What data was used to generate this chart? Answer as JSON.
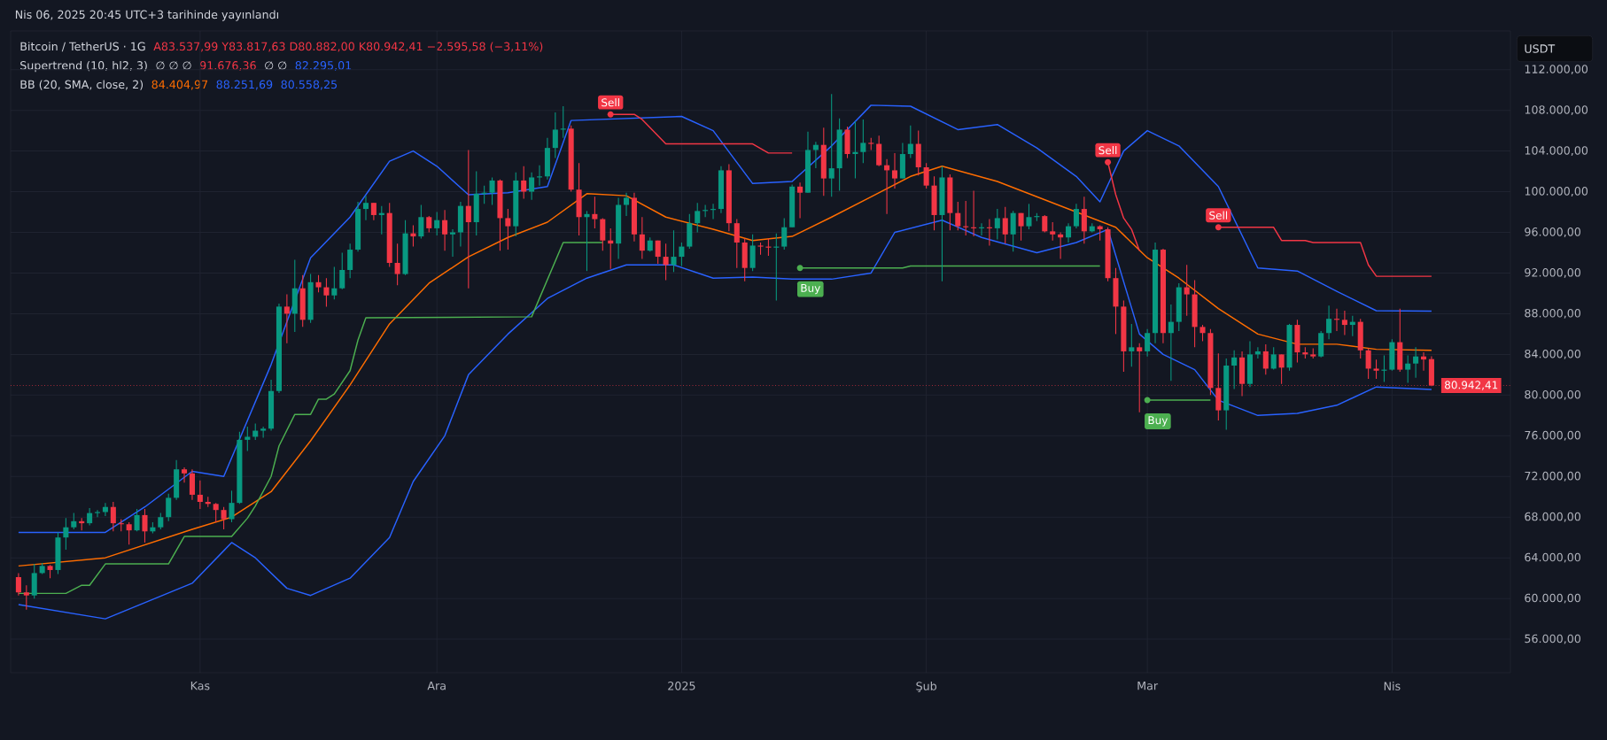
{
  "chart_data": {
    "type": "candlestick",
    "title": "Bitcoin / TetherUS · 1G",
    "subtitle": "Nis 06, 2025 20:45 UTC+3 tarihinde yayınlandı",
    "ylabel": "USDT",
    "x": [
      "2024-10-09",
      "2024-10-10",
      "2024-10-11",
      "2024-10-12",
      "2024-10-13",
      "2024-10-14",
      "2024-10-15",
      "2024-10-16",
      "2024-10-17",
      "2024-10-18",
      "2024-10-19",
      "2024-10-20",
      "2024-10-21",
      "2024-10-22",
      "2024-10-23",
      "2024-10-24",
      "2024-10-25",
      "2024-10-26",
      "2024-10-27",
      "2024-10-28",
      "2024-10-29",
      "2024-10-30",
      "2024-10-31",
      "2024-11-01",
      "2024-11-02",
      "2024-11-03",
      "2024-11-04",
      "2024-11-05",
      "2024-11-06",
      "2024-11-07",
      "2024-11-08",
      "2024-11-09",
      "2024-11-10",
      "2024-11-11",
      "2024-11-12",
      "2024-11-13",
      "2024-11-14",
      "2024-11-15",
      "2024-11-16",
      "2024-11-17",
      "2024-11-18",
      "2024-11-19",
      "2024-11-20",
      "2024-11-21",
      "2024-11-22",
      "2024-11-23",
      "2024-11-24",
      "2024-11-25",
      "2024-11-26",
      "2024-11-27",
      "2024-11-28",
      "2024-11-29",
      "2024-11-30",
      "2024-12-01",
      "2024-12-02",
      "2024-12-03",
      "2024-12-04",
      "2024-12-05",
      "2024-12-06",
      "2024-12-07",
      "2024-12-08",
      "2024-12-09",
      "2024-12-10",
      "2024-12-11",
      "2024-12-12",
      "2024-12-13",
      "2024-12-14",
      "2024-12-15",
      "2024-12-16",
      "2024-12-17",
      "2024-12-18",
      "2024-12-19",
      "2024-12-20",
      "2024-12-21",
      "2024-12-22",
      "2024-12-23",
      "2024-12-24",
      "2024-12-25",
      "2024-12-26",
      "2024-12-27",
      "2024-12-28",
      "2024-12-29",
      "2024-12-30",
      "2024-12-31",
      "2025-01-01",
      "2025-01-02",
      "2025-01-03",
      "2025-01-04",
      "2025-01-05",
      "2025-01-06",
      "2025-01-07",
      "2025-01-08",
      "2025-01-09",
      "2025-01-10",
      "2025-01-11",
      "2025-01-12",
      "2025-01-13",
      "2025-01-14",
      "2025-01-15",
      "2025-01-16",
      "2025-01-17",
      "2025-01-18",
      "2025-01-19",
      "2025-01-20",
      "2025-01-21",
      "2025-01-22",
      "2025-01-23",
      "2025-01-24",
      "2025-01-25",
      "2025-01-26",
      "2025-01-27",
      "2025-01-28",
      "2025-01-29",
      "2025-01-30",
      "2025-01-31",
      "2025-02-01",
      "2025-02-02",
      "2025-02-03",
      "2025-02-04",
      "2025-02-05",
      "2025-02-06",
      "2025-02-07",
      "2025-02-08",
      "2025-02-09",
      "2025-02-10",
      "2025-02-11",
      "2025-02-12",
      "2025-02-13",
      "2025-02-14",
      "2025-02-15",
      "2025-02-16",
      "2025-02-17",
      "2025-02-18",
      "2025-02-19",
      "2025-02-20",
      "2025-02-21",
      "2025-02-22",
      "2025-02-23",
      "2025-02-24",
      "2025-02-25",
      "2025-02-26",
      "2025-02-27",
      "2025-02-28",
      "2025-03-01",
      "2025-03-02",
      "2025-03-03",
      "2025-03-04",
      "2025-03-05",
      "2025-03-06",
      "2025-03-07",
      "2025-03-08",
      "2025-03-09",
      "2025-03-10",
      "2025-03-11",
      "2025-03-12",
      "2025-03-13",
      "2025-03-14",
      "2025-03-15",
      "2025-03-16",
      "2025-03-17",
      "2025-03-18",
      "2025-03-19",
      "2025-03-20",
      "2025-03-21",
      "2025-03-22",
      "2025-03-23",
      "2025-03-24",
      "2025-03-25",
      "2025-03-26",
      "2025-03-27",
      "2025-03-28",
      "2025-03-29",
      "2025-03-30",
      "2025-03-31",
      "2025-04-01",
      "2025-04-02",
      "2025-04-03",
      "2025-04-04",
      "2025-04-05",
      "2025-04-06"
    ],
    "ohlc": [
      [
        62100,
        62500,
        60300,
        60600
      ],
      [
        60600,
        61300,
        58900,
        60300
      ],
      [
        60300,
        63400,
        60000,
        62500
      ],
      [
        62500,
        63500,
        62400,
        63200
      ],
      [
        63200,
        63300,
        62000,
        62800
      ],
      [
        62800,
        66500,
        62400,
        66000
      ],
      [
        66000,
        67900,
        64800,
        67000
      ],
      [
        67000,
        68400,
        66800,
        67600
      ],
      [
        67600,
        67900,
        66700,
        67400
      ],
      [
        67400,
        68900,
        67200,
        68400
      ],
      [
        68400,
        68700,
        68000,
        68500
      ],
      [
        68500,
        69400,
        68100,
        69000
      ],
      [
        69000,
        69500,
        66600,
        67400
      ],
      [
        67400,
        67800,
        66600,
        67300
      ],
      [
        67300,
        67500,
        65300,
        66700
      ],
      [
        66700,
        68800,
        66600,
        68200
      ],
      [
        68200,
        68800,
        65500,
        66600
      ],
      [
        66600,
        67500,
        66400,
        67000
      ],
      [
        67000,
        68400,
        66800,
        68000
      ],
      [
        68000,
        70300,
        67600,
        69900
      ],
      [
        69900,
        73600,
        69700,
        72700
      ],
      [
        72700,
        72900,
        71400,
        72300
      ],
      [
        72300,
        72700,
        69700,
        70200
      ],
      [
        70200,
        71600,
        68800,
        69500
      ],
      [
        69500,
        70000,
        69000,
        69300
      ],
      [
        69300,
        69400,
        67500,
        68700
      ],
      [
        68700,
        69000,
        66800,
        67800
      ],
      [
        67800,
        70600,
        67500,
        69400
      ],
      [
        69400,
        76400,
        69300,
        75600
      ],
      [
        75600,
        76900,
        74500,
        75900
      ],
      [
        75900,
        77200,
        75600,
        76500
      ],
      [
        76500,
        76900,
        75800,
        76700
      ],
      [
        76700,
        81500,
        76500,
        80400
      ],
      [
        80400,
        89000,
        80200,
        88700
      ],
      [
        88700,
        89900,
        85100,
        88000
      ],
      [
        88000,
        93300,
        86200,
        90500
      ],
      [
        90500,
        91800,
        86700,
        87400
      ],
      [
        87400,
        91900,
        87100,
        91100
      ],
      [
        91100,
        91800,
        90100,
        90600
      ],
      [
        90600,
        91500,
        88700,
        89800
      ],
      [
        89800,
        92600,
        89400,
        90500
      ],
      [
        90500,
        94000,
        90400,
        92300
      ],
      [
        92300,
        94900,
        91500,
        94300
      ],
      [
        94300,
        99000,
        94100,
        98300
      ],
      [
        98300,
        99600,
        97200,
        98900
      ],
      [
        98900,
        98900,
        97200,
        97700
      ],
      [
        97700,
        98600,
        95800,
        97900
      ],
      [
        97900,
        98900,
        92600,
        93000
      ],
      [
        93000,
        94900,
        90800,
        91900
      ],
      [
        91900,
        97200,
        91800,
        95900
      ],
      [
        95900,
        96700,
        94600,
        95600
      ],
      [
        95600,
        98700,
        95400,
        97500
      ],
      [
        97500,
        97600,
        96000,
        96400
      ],
      [
        96400,
        98000,
        95700,
        97200
      ],
      [
        97200,
        98200,
        94200,
        95800
      ],
      [
        95800,
        96300,
        93600,
        96000
      ],
      [
        96000,
        99000,
        94600,
        98600
      ],
      [
        98600,
        104100,
        90500,
        97000
      ],
      [
        97000,
        102000,
        95700,
        99800
      ],
      [
        99800,
        100600,
        98800,
        99900
      ],
      [
        99900,
        101400,
        98700,
        101100
      ],
      [
        101100,
        101200,
        94200,
        97400
      ],
      [
        97400,
        98300,
        94300,
        96600
      ],
      [
        96600,
        101900,
        95600,
        101100
      ],
      [
        101100,
        102500,
        99300,
        100000
      ],
      [
        100000,
        101900,
        99200,
        101400
      ],
      [
        101400,
        102600,
        100600,
        101500
      ],
      [
        101500,
        105300,
        101200,
        104300
      ],
      [
        104300,
        107800,
        103300,
        106100
      ],
      [
        106100,
        108400,
        105300,
        106200
      ],
      [
        106200,
        106500,
        100000,
        100200
      ],
      [
        100200,
        102800,
        95700,
        97500
      ],
      [
        97500,
        98100,
        92200,
        97800
      ],
      [
        97800,
        99500,
        96400,
        97300
      ],
      [
        97300,
        97400,
        94200,
        95200
      ],
      [
        95200,
        96400,
        92400,
        94900
      ],
      [
        94900,
        99400,
        93400,
        98700
      ],
      [
        98700,
        99900,
        97600,
        99400
      ],
      [
        99400,
        99900,
        95100,
        95800
      ],
      [
        95800,
        97500,
        93400,
        94200
      ],
      [
        94200,
        95500,
        94100,
        95200
      ],
      [
        95200,
        95200,
        92900,
        93600
      ],
      [
        93600,
        94900,
        91300,
        92800
      ],
      [
        92800,
        96200,
        92100,
        93600
      ],
      [
        93600,
        95000,
        92700,
        94600
      ],
      [
        94600,
        97800,
        94400,
        96900
      ],
      [
        96900,
        98900,
        96000,
        98100
      ],
      [
        98100,
        98700,
        97500,
        98200
      ],
      [
        98200,
        98800,
        97300,
        98300
      ],
      [
        98300,
        102500,
        97900,
        102100
      ],
      [
        102100,
        102700,
        96100,
        96900
      ],
      [
        96900,
        97300,
        92500,
        95000
      ],
      [
        95000,
        95400,
        91200,
        92500
      ],
      [
        92500,
        95800,
        92200,
        94700
      ],
      [
        94700,
        95000,
        93800,
        94600
      ],
      [
        94600,
        95400,
        93700,
        94500
      ],
      [
        94500,
        95900,
        89300,
        94600
      ],
      [
        94600,
        97400,
        94300,
        96500
      ],
      [
        96500,
        100700,
        96500,
        100500
      ],
      [
        100500,
        100900,
        97400,
        99900
      ],
      [
        99900,
        105900,
        99900,
        104100
      ],
      [
        104100,
        104900,
        102300,
        104600
      ],
      [
        104600,
        106300,
        99600,
        101300
      ],
      [
        101300,
        109600,
        99500,
        102300
      ],
      [
        102300,
        107200,
        100100,
        106100
      ],
      [
        106100,
        106400,
        103300,
        103700
      ],
      [
        103700,
        106900,
        101300,
        103900
      ],
      [
        103900,
        107100,
        102800,
        104800
      ],
      [
        104800,
        105300,
        104100,
        104700
      ],
      [
        104700,
        105500,
        102500,
        102600
      ],
      [
        102600,
        103200,
        97800,
        102100
      ],
      [
        102100,
        103800,
        100300,
        101300
      ],
      [
        101300,
        104800,
        101300,
        103700
      ],
      [
        103700,
        106500,
        103300,
        104700
      ],
      [
        104700,
        106000,
        101600,
        102400
      ],
      [
        102400,
        102800,
        100300,
        100600
      ],
      [
        100600,
        101500,
        96200,
        97700
      ],
      [
        97700,
        102500,
        91200,
        101400
      ],
      [
        101400,
        101700,
        96200,
        97900
      ],
      [
        97900,
        99000,
        96200,
        96600
      ],
      [
        96600,
        99100,
        95700,
        96500
      ],
      [
        96500,
        100100,
        95600,
        96400
      ],
      [
        96400,
        96900,
        95700,
        96500
      ],
      [
        96500,
        97300,
        94700,
        96400
      ],
      [
        96400,
        98300,
        95300,
        97400
      ],
      [
        97400,
        98500,
        94900,
        95800
      ],
      [
        95800,
        98100,
        94100,
        97900
      ],
      [
        97900,
        97900,
        95200,
        96600
      ],
      [
        96600,
        98800,
        96300,
        97500
      ],
      [
        97500,
        97900,
        97100,
        97600
      ],
      [
        97600,
        97700,
        96000,
        96100
      ],
      [
        96100,
        97000,
        95200,
        95800
      ],
      [
        95800,
        96000,
        93400,
        95500
      ],
      [
        95500,
        96900,
        95000,
        96600
      ],
      [
        96600,
        98800,
        96400,
        98300
      ],
      [
        98300,
        99500,
        94900,
        96100
      ],
      [
        96100,
        96900,
        96000,
        96600
      ],
      [
        96600,
        96700,
        95200,
        96300
      ],
      [
        96300,
        96500,
        91200,
        91500
      ],
      [
        91500,
        92500,
        86000,
        88700
      ],
      [
        88700,
        89300,
        82300,
        84300
      ],
      [
        84300,
        87000,
        82800,
        84700
      ],
      [
        84700,
        85100,
        78300,
        84300
      ],
      [
        84300,
        86500,
        83800,
        86100
      ],
      [
        86100,
        95000,
        85100,
        94300
      ],
      [
        94300,
        94400,
        85100,
        86100
      ],
      [
        86100,
        88900,
        81400,
        87200
      ],
      [
        87200,
        91000,
        86300,
        90600
      ],
      [
        90600,
        92800,
        87800,
        89900
      ],
      [
        89900,
        91300,
        84700,
        86700
      ],
      [
        86700,
        86900,
        85300,
        86100
      ],
      [
        86100,
        86500,
        80000,
        80700
      ],
      [
        80700,
        84100,
        77500,
        78500
      ],
      [
        78500,
        83600,
        76600,
        82900
      ],
      [
        82900,
        84400,
        80600,
        83700
      ],
      [
        83700,
        84300,
        79900,
        81100
      ],
      [
        81100,
        85300,
        80800,
        84000
      ],
      [
        84000,
        84700,
        83600,
        84300
      ],
      [
        84300,
        85000,
        82000,
        82600
      ],
      [
        82600,
        84700,
        82500,
        84000
      ],
      [
        84000,
        84000,
        81100,
        82700
      ],
      [
        82700,
        87000,
        82400,
        86900
      ],
      [
        86900,
        87400,
        83200,
        84200
      ],
      [
        84200,
        84700,
        83600,
        84000
      ],
      [
        84000,
        84600,
        83600,
        83800
      ],
      [
        83800,
        86300,
        83700,
        86100
      ],
      [
        86100,
        88800,
        85500,
        87500
      ],
      [
        87500,
        88500,
        86300,
        87400
      ],
      [
        87400,
        88300,
        85900,
        86900
      ],
      [
        86900,
        87800,
        85800,
        87200
      ],
      [
        87200,
        87500,
        83600,
        84400
      ],
      [
        84400,
        84600,
        81600,
        82600
      ],
      [
        82600,
        83500,
        81600,
        82400
      ],
      [
        82400,
        83900,
        81300,
        82500
      ],
      [
        82500,
        85500,
        82400,
        85200
      ],
      [
        85200,
        88500,
        82300,
        82500
      ],
      [
        82500,
        83900,
        81200,
        83100
      ],
      [
        83100,
        84700,
        81700,
        83800
      ],
      [
        83800,
        84200,
        82400,
        83500
      ],
      [
        83537.99,
        83817.63,
        80882.0,
        80942.41
      ]
    ],
    "colors": [
      "#f23645",
      "#f23645",
      "#089981",
      "#089981",
      "#f23645",
      "#089981",
      "#089981",
      "#089981",
      "#f23645",
      "#089981",
      "#089981",
      "#089981",
      "#f23645",
      "#f23645",
      "#f23645",
      "#089981",
      "#f23645",
      "#089981",
      "#089981",
      "#089981",
      "#089981",
      "#f23645",
      "#f23645",
      "#f23645",
      "#f23645",
      "#f23645",
      "#f23645",
      "#089981",
      "#089981",
      "#089981",
      "#089981",
      "#089981",
      "#089981",
      "#089981",
      "#f23645",
      "#089981",
      "#f23645",
      "#089981",
      "#f23645",
      "#f23645",
      "#089981",
      "#089981",
      "#089981",
      "#089981",
      "#089981",
      "#f23645",
      "#089981",
      "#f23645",
      "#f23645",
      "#089981",
      "#f23645",
      "#089981",
      "#f23645",
      "#089981",
      "#f23645",
      "#089981",
      "#089981",
      "#f23645",
      "#089981",
      "#089981",
      "#089981",
      "#f23645",
      "#f23645",
      "#089981",
      "#f23645",
      "#089981",
      "#089981",
      "#089981",
      "#089981",
      "#089981",
      "#f23645",
      "#f23645",
      "#089981",
      "#f23645",
      "#f23645",
      "#f23645",
      "#089981",
      "#089981",
      "#f23645",
      "#f23645",
      "#089981",
      "#f23645",
      "#f23645",
      "#089981",
      "#089981",
      "#089981",
      "#089981",
      "#089981",
      "#089981",
      "#089981",
      "#f23645",
      "#f23645",
      "#f23645",
      "#089981",
      "#f23645",
      "#f23645",
      "#089981",
      "#089981",
      "#089981",
      "#f23645",
      "#089981",
      "#089981",
      "#f23645",
      "#089981",
      "#089981",
      "#f23645",
      "#089981",
      "#089981",
      "#f23645",
      "#f23645",
      "#f23645",
      "#f23645",
      "#089981",
      "#089981",
      "#f23645",
      "#f23645",
      "#f23645",
      "#089981",
      "#f23645",
      "#f23645",
      "#f23645",
      "#f23645",
      "#089981",
      "#f23645",
      "#089981",
      "#f23645",
      "#089981",
      "#f23645",
      "#089981",
      "#089981",
      "#f23645",
      "#f23645",
      "#f23645",
      "#089981",
      "#089981",
      "#f23645",
      "#089981",
      "#f23645",
      "#f23645",
      "#f23645",
      "#f23645",
      "#089981",
      "#f23645",
      "#089981",
      "#089981",
      "#f23645",
      "#089981",
      "#089981",
      "#f23645",
      "#f23645",
      "#f23645",
      "#f23645",
      "#f23645",
      "#089981",
      "#089981",
      "#f23645",
      "#089981",
      "#089981",
      "#f23645",
      "#089981",
      "#f23645",
      "#089981",
      "#f23645",
      "#f23645",
      "#f23645",
      "#089981",
      "#089981",
      "#f23645",
      "#f23645",
      "#089981",
      "#f23645",
      "#f23645",
      "#f23645",
      "#089981",
      "#089981",
      "#f23645",
      "#089981",
      "#089981",
      "#f23645",
      "#f23645"
    ],
    "series": [
      {
        "type": "line",
        "color": "#ff6d00",
        "x": [
          "2024-10-09",
          "2024-10-20",
          "2024-10-31",
          "2024-11-05",
          "2024-11-10",
          "2024-11-15",
          "2024-11-20",
          "2024-11-25",
          "2024-11-30",
          "2024-12-05",
          "2024-12-10",
          "2024-12-15",
          "2024-12-20",
          "2024-12-25",
          "2024-12-30",
          "2025-01-05",
          "2025-01-10",
          "2025-01-15",
          "2025-01-20",
          "2025-01-25",
          "2025-01-30",
          "2025-02-03",
          "2025-02-10",
          "2025-02-15",
          "2025-02-20",
          "2025-02-25",
          "2025-03-01",
          "2025-03-05",
          "2025-03-10",
          "2025-03-15",
          "2025-03-20",
          "2025-03-25",
          "2025-03-30",
          "2025-04-06"
        ],
        "values": [
          63200,
          64000,
          66800,
          68000,
          70500,
          75500,
          81000,
          87000,
          91000,
          93600,
          95500,
          97000,
          99800,
          99600,
          97500,
          96300,
          95200,
          95600,
          97500,
          99500,
          101500,
          102500,
          101000,
          99500,
          98000,
          96500,
          93500,
          91500,
          88500,
          86000,
          85000,
          85000,
          84500,
          84400
        ]
      },
      {
        "type": "line",
        "color": "#2962ff",
        "x": [
          "2024-10-09",
          "2024-10-20",
          "2024-10-25",
          "2024-10-31",
          "2024-11-04",
          "2024-11-10",
          "2024-11-15",
          "2024-11-20",
          "2024-11-25",
          "2024-11-28",
          "2024-12-01",
          "2024-12-05",
          "2024-12-10",
          "2024-12-15",
          "2024-12-18",
          "2024-12-25",
          "2025-01-01",
          "2025-01-05",
          "2025-01-10",
          "2025-01-15",
          "2025-01-20",
          "2025-01-25",
          "2025-01-30",
          "2025-02-05",
          "2025-02-10",
          "2025-02-15",
          "2025-02-20",
          "2025-02-23",
          "2025-02-26",
          "2025-03-01",
          "2025-03-05",
          "2025-03-10",
          "2025-03-15",
          "2025-03-20",
          "2025-03-25",
          "2025-03-30",
          "2025-04-06"
        ],
        "values": [
          66500,
          66500,
          69000,
          72500,
          72000,
          83000,
          93500,
          97500,
          103000,
          104000,
          102500,
          99700,
          99900,
          100500,
          107000,
          107200,
          107400,
          106000,
          100800,
          101000,
          104500,
          108500,
          108400,
          106100,
          106600,
          104300,
          101500,
          99000,
          104000,
          106000,
          104500,
          100500,
          92500,
          92200,
          90200,
          88300,
          88250
        ]
      },
      {
        "type": "line",
        "color": "#2962ff",
        "x": [
          "2024-10-09",
          "2024-10-20",
          "2024-10-31",
          "2024-11-05",
          "2024-11-08",
          "2024-11-12",
          "2024-11-15",
          "2024-11-20",
          "2024-11-25",
          "2024-11-28",
          "2024-12-02",
          "2024-12-05",
          "2024-12-10",
          "2024-12-15",
          "2024-12-20",
          "2024-12-25",
          "2024-12-31",
          "2025-01-05",
          "2025-01-10",
          "2025-01-15",
          "2025-01-20",
          "2025-01-25",
          "2025-01-28",
          "2025-02-03",
          "2025-02-08",
          "2025-02-15",
          "2025-02-20",
          "2025-02-24",
          "2025-02-28",
          "2025-03-03",
          "2025-03-07",
          "2025-03-10",
          "2025-03-15",
          "2025-03-20",
          "2025-03-25",
          "2025-03-30",
          "2025-04-06"
        ],
        "values": [
          59400,
          58000,
          61500,
          65500,
          64000,
          61000,
          60300,
          62000,
          66000,
          71500,
          76000,
          82000,
          86000,
          89500,
          91500,
          92800,
          92800,
          91500,
          91600,
          91400,
          91400,
          92000,
          96000,
          97200,
          95500,
          94000,
          95000,
          96300,
          86000,
          84000,
          82500,
          79500,
          78000,
          78200,
          79000,
          80800,
          80560
        ]
      },
      {
        "type": "line",
        "color": "#4caf50",
        "x": [
          "2024-10-09",
          "2024-10-15",
          "2024-10-17",
          "2024-10-18",
          "2024-10-20",
          "2024-10-28",
          "2024-10-30",
          "2024-11-05",
          "2024-11-07",
          "2024-11-08",
          "2024-11-10",
          "2024-11-11",
          "2024-11-13",
          "2024-11-15",
          "2024-11-16",
          "2024-11-17",
          "2024-11-18",
          "2024-11-20",
          "2024-11-21",
          "2024-11-22",
          "2024-12-13",
          "2024-12-17",
          "2024-12-22",
          "2024-12-23",
          "2025-01-16",
          "2025-01-29",
          "2025-01-30",
          "2025-02-23",
          "2025-02-24",
          "2025-03-01",
          "2025-03-09"
        ],
        "values": [
          60500,
          60500,
          61300,
          61300,
          63400,
          63400,
          66100,
          66100,
          67900,
          69100,
          72000,
          75000,
          78100,
          78100,
          79600,
          79600,
          80100,
          82400,
          85400,
          87600,
          87700,
          95000,
          95000,
          null,
          92500,
          92500,
          92700,
          92700,
          null,
          79500,
          79500
        ]
      },
      {
        "type": "line",
        "color": "#f23645",
        "x": [
          "2024-12-23",
          "2024-12-26",
          "2024-12-27",
          "2024-12-30",
          "2025-01-10",
          "2025-01-12",
          "2025-01-15",
          "2025-01-16",
          "2025-02-24",
          "2025-02-25",
          "2025-02-26",
          "2025-02-27",
          "2025-02-28",
          "2025-03-01",
          "2025-03-10",
          "2025-03-17",
          "2025-03-18",
          "2025-03-21",
          "2025-03-22",
          "2025-03-28",
          "2025-03-29",
          "2025-03-30",
          "2025-04-06"
        ],
        "values": [
          107600,
          107600,
          107100,
          104700,
          104700,
          103800,
          103800,
          null,
          102900,
          99700,
          97400,
          96300,
          94200,
          null,
          96500,
          96500,
          95200,
          95200,
          95000,
          95000,
          92800,
          91700,
          91680
        ]
      }
    ],
    "ref_lines": [
      {
        "axis": "y",
        "value": 80942.41,
        "color": "#f23645",
        "line_style": "dotted"
      }
    ],
    "annotations": [
      "A83.537,99 Y83.817,63 D80.882,00 K80.942,41 −2.595,58 (−3,11%)",
      "Supertrend (10, hl2, 3)",
      "∅ ∅ ∅",
      "91.676,36",
      "∅ ∅",
      "82.295,01",
      "BB (20, SMA, close, 2)",
      "84.404,97",
      "88.251,69",
      "80.558,25",
      {
        "text": "Sell",
        "x": "2024-12-23",
        "y": 107600
      },
      {
        "text": "Buy",
        "x": "2025-01-16",
        "y": 92500
      },
      {
        "text": "Sell",
        "x": "2025-02-24",
        "y": 102900
      },
      {
        "text": "Buy",
        "x": "2025-03-01",
        "y": 79500
      },
      {
        "text": "Sell",
        "x": "2025-03-10",
        "y": 96500
      },
      {
        "text": "80.942,41",
        "x": "2025-04-06",
        "y": 80942.41
      }
    ],
    "xlim": [
      "2024-10-08",
      "2025-04-16"
    ],
    "xticks": [
      {
        "value": "2024-11-01",
        "label": "Kas"
      },
      {
        "value": "2024-12-01",
        "label": "Ara"
      },
      {
        "value": "2025-01-01",
        "label": "2025"
      },
      {
        "value": "2025-02-01",
        "label": "Şub"
      },
      {
        "value": "2025-03-01",
        "label": "Mar"
      },
      {
        "value": "2025-04-01",
        "label": "Nis"
      }
    ],
    "ylim": [
      52700,
      115800
    ],
    "yticks": [
      {
        "value": 56000,
        "label": "56.000,00"
      },
      {
        "value": 60000,
        "label": "60.000,00"
      },
      {
        "value": 64000,
        "label": "64.000,00"
      },
      {
        "value": 68000,
        "label": "68.000,00"
      },
      {
        "value": 72000,
        "label": "72.000,00"
      },
      {
        "value": 76000,
        "label": "76.000,00"
      },
      {
        "value": 80000,
        "label": "80.000,00"
      },
      {
        "value": 84000,
        "label": "84.000,00"
      },
      {
        "value": 88000,
        "label": "88.000,00"
      },
      {
        "value": 92000,
        "label": "92.000,00"
      },
      {
        "value": 96000,
        "label": "96.000,00"
      },
      {
        "value": 100000,
        "label": "100.000,00"
      },
      {
        "value": 104000,
        "label": "104.000,00"
      },
      {
        "value": 108000,
        "label": "108.000,00"
      },
      {
        "value": 112000,
        "label": "112.000,00"
      }
    ],
    "grid": true
  }
}
